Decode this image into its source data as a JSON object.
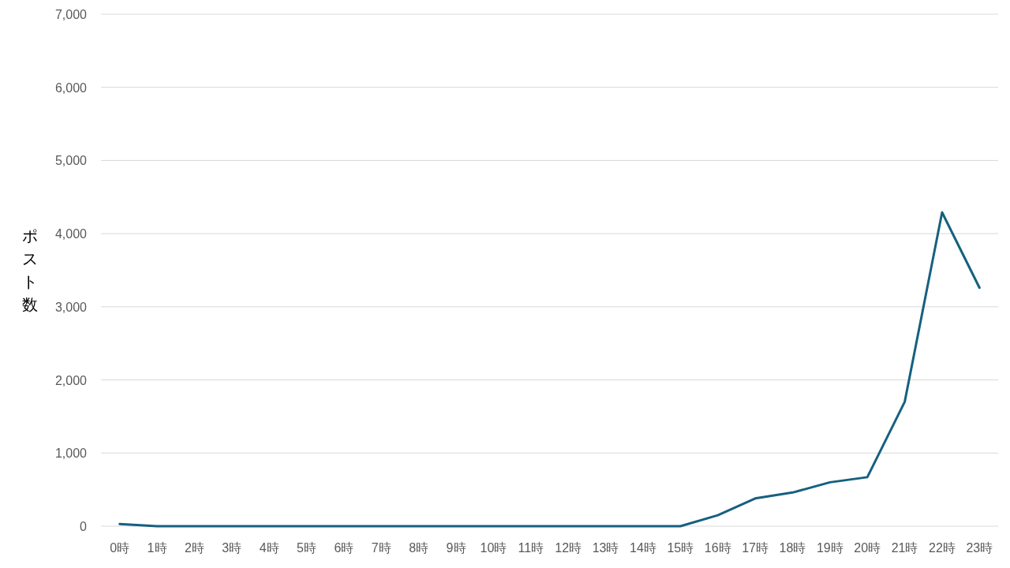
{
  "chart_data": {
    "type": "line",
    "ylabel": "ポスト数",
    "categories": [
      "0時",
      "1時",
      "2時",
      "3時",
      "4時",
      "5時",
      "6時",
      "7時",
      "8時",
      "9時",
      "10時",
      "11時",
      "12時",
      "13時",
      "14時",
      "15時",
      "16時",
      "17時",
      "18時",
      "19時",
      "20時",
      "21時",
      "22時",
      "23時"
    ],
    "series": [
      {
        "color": "#16607f",
        "values": [
          30,
          0,
          0,
          0,
          0,
          0,
          0,
          0,
          0,
          0,
          0,
          0,
          0,
          0,
          0,
          0,
          150,
          380,
          460,
          600,
          670,
          1700,
          4290,
          3260
        ]
      }
    ],
    "ylim": [
      0,
      7000
    ],
    "yticks": [
      0,
      {
        "value": 1000,
        "label": "1,000"
      },
      {
        "value": 2000,
        "label": "2,000"
      },
      {
        "value": 3000,
        "label": "3,000"
      },
      {
        "value": 4000,
        "label": "4,000"
      },
      {
        "value": 5000,
        "label": "5,000"
      },
      {
        "value": 6000,
        "label": "6,000"
      },
      {
        "value": 7000,
        "label": "7,000"
      }
    ],
    "grid": "y",
    "line_style": "solid"
  }
}
